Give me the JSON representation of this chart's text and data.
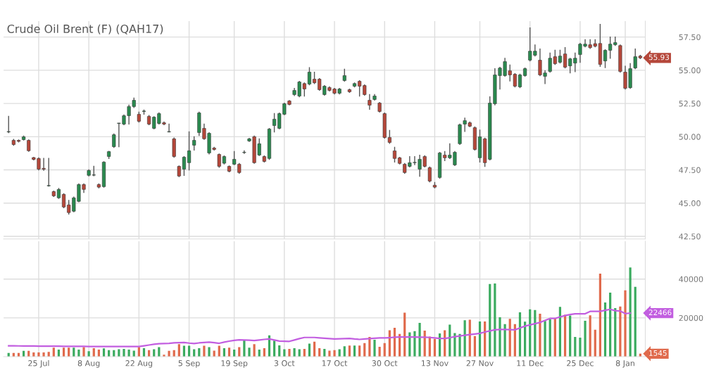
{
  "chart_data": [
    {
      "type": "candlestick",
      "title": "Crude Oil Brent (F) (QAH17)",
      "categories": [
        null,
        null,
        null,
        null,
        null,
        null,
        null,
        null,
        null,
        null,
        null,
        null,
        null,
        null,
        null,
        null,
        null,
        null,
        null,
        null,
        null,
        null,
        null,
        null,
        null,
        null,
        null,
        null,
        null,
        null,
        null,
        null,
        null,
        null,
        null,
        null,
        null,
        null,
        null,
        null,
        null,
        null,
        null,
        null,
        null,
        null,
        null,
        null,
        null,
        null,
        null,
        null,
        null,
        null,
        null,
        null,
        null,
        null,
        null,
        null,
        null,
        null,
        null,
        null,
        null,
        null,
        null,
        null,
        null,
        null,
        null,
        null,
        null,
        null,
        null,
        null,
        null,
        null,
        null,
        null,
        null,
        null,
        null,
        null,
        null,
        null,
        null,
        null,
        null,
        null,
        null,
        null,
        null,
        null,
        null,
        null,
        null,
        null,
        null,
        null,
        null,
        null,
        null,
        null,
        null,
        null,
        null,
        null,
        null,
        null,
        null,
        null,
        null,
        null,
        null,
        null,
        null,
        null,
        null,
        null,
        null,
        null,
        null,
        null,
        null,
        null,
        null
      ],
      "ohlc": [
        [
          50.36,
          51.53,
          50.3,
          50.36
        ],
        [
          49.73,
          49.8,
          49.35,
          49.41
        ],
        [
          49.72,
          49.75,
          49.6,
          49.65
        ],
        [
          49.78,
          50.05,
          49.75,
          49.99
        ],
        [
          49.73,
          49.75,
          48.9,
          48.94
        ],
        [
          48.43,
          48.45,
          48.25,
          48.29
        ],
        [
          48.36,
          48.4,
          47.5,
          47.56
        ],
        [
          47.62,
          48.36,
          47.47,
          47.55
        ],
        [
          46.3,
          48.36,
          46.28,
          46.3
        ],
        [
          45.87,
          45.9,
          45.5,
          45.55
        ],
        [
          45.4,
          46.1,
          45.35,
          46.03
        ],
        [
          45.66,
          45.7,
          44.65,
          44.71
        ],
        [
          44.87,
          45.2,
          44.18,
          44.29
        ],
        [
          44.39,
          45.45,
          44.35,
          45.4
        ],
        [
          45.13,
          46.45,
          45.1,
          46.4
        ],
        [
          46.4,
          46.45,
          45.8,
          46.03
        ],
        [
          47.09,
          47.5,
          47.05,
          47.46
        ],
        [
          47.1,
          47.77,
          47.06,
          47.1
        ],
        [
          46.4,
          46.45,
          46.15,
          46.2
        ],
        [
          46.24,
          48.12,
          46.2,
          48.09
        ],
        [
          48.51,
          48.9,
          48.36,
          48.88
        ],
        [
          49.25,
          50.2,
          49.2,
          50.15
        ],
        [
          51.0,
          51.0,
          49.25,
          51.0
        ],
        [
          50.95,
          51.63,
          50.9,
          51.58
        ],
        [
          51.58,
          52.37,
          50.95,
          52.27
        ],
        [
          52.27,
          52.9,
          52.2,
          52.74
        ],
        [
          51.69,
          51.85,
          51.1,
          51.16
        ],
        [
          51.9,
          52.0,
          51.7,
          51.9
        ],
        [
          51.53,
          51.6,
          50.9,
          50.95
        ],
        [
          50.63,
          51.5,
          50.6,
          51.47
        ],
        [
          51.0,
          51.8,
          50.95,
          51.74
        ],
        [
          51.05,
          51.1,
          50.9,
          50.95
        ],
        [
          50.36,
          50.95,
          50.36,
          50.36
        ],
        [
          49.84,
          49.9,
          48.45,
          48.51
        ],
        [
          47.77,
          47.8,
          47.0,
          47.04
        ],
        [
          47.56,
          48.5,
          47.09,
          48.46
        ],
        [
          48.04,
          50.36,
          47.5,
          48.94
        ],
        [
          49.36,
          49.99,
          48.99,
          49.73
        ],
        [
          50.31,
          51.85,
          50.1,
          51.79
        ],
        [
          50.63,
          50.95,
          49.8,
          49.84
        ],
        [
          48.78,
          50.3,
          48.7,
          50.26
        ],
        [
          49.15,
          49.2,
          49.0,
          49.04
        ],
        [
          48.67,
          48.7,
          47.7,
          47.77
        ],
        [
          48.0,
          48.55,
          47.95,
          48.51
        ],
        [
          47.77,
          47.8,
          47.35,
          47.4
        ],
        [
          47.93,
          48.88,
          47.9,
          48.3
        ],
        [
          47.93,
          47.98,
          47.25,
          47.3
        ],
        [
          48.8,
          48.93,
          48.75,
          48.8
        ],
        [
          49.68,
          49.88,
          49.65,
          49.84
        ],
        [
          50.0,
          50.05,
          48.0,
          48.04
        ],
        [
          48.62,
          49.84,
          48.58,
          49.47
        ],
        [
          48.51,
          48.55,
          48.1,
          48.14
        ],
        [
          48.36,
          50.62,
          48.3,
          50.58
        ],
        [
          50.84,
          51.74,
          50.36,
          51.32
        ],
        [
          50.63,
          51.78,
          50.6,
          51.74
        ],
        [
          51.69,
          52.52,
          51.65,
          52.48
        ],
        [
          52.69,
          52.72,
          52.4,
          52.43
        ],
        [
          53.17,
          53.64,
          53.1,
          53.48
        ],
        [
          53.06,
          54.16,
          53.0,
          54.12
        ],
        [
          54.0,
          54.05,
          53.06,
          53.59
        ],
        [
          53.96,
          55.2,
          53.9,
          54.86
        ],
        [
          54.33,
          54.85,
          54.0,
          54.06
        ],
        [
          54.33,
          54.38,
          53.5,
          53.54
        ],
        [
          53.17,
          53.85,
          53.12,
          53.8
        ],
        [
          53.7,
          53.75,
          53.44,
          53.48
        ],
        [
          53.59,
          53.63,
          53.22,
          53.27
        ],
        [
          53.27,
          53.63,
          53.22,
          53.59
        ],
        [
          54.22,
          55.07,
          54.18,
          54.6
        ],
        [
          53.54,
          53.58,
          53.34,
          53.38
        ],
        [
          53.8,
          54.05,
          53.75,
          54.0
        ],
        [
          54.17,
          54.22,
          53.06,
          53.8
        ],
        [
          53.85,
          53.9,
          53.12,
          53.17
        ],
        [
          52.74,
          53.17,
          52.06,
          52.37
        ],
        [
          52.8,
          53.17,
          52.75,
          53.06
        ],
        [
          52.53,
          52.58,
          51.85,
          51.9
        ],
        [
          51.74,
          51.78,
          49.9,
          49.94
        ],
        [
          49.94,
          50.47,
          49.5,
          49.57
        ],
        [
          48.93,
          49.2,
          48.1,
          48.36
        ],
        [
          48.41,
          48.45,
          47.95,
          47.99
        ],
        [
          47.93,
          47.98,
          47.25,
          47.3
        ],
        [
          47.77,
          48.5,
          47.72,
          48.04
        ],
        [
          48.04,
          48.5,
          47.9,
          48.04
        ],
        [
          47.56,
          48.6,
          47.03,
          48.3
        ],
        [
          48.51,
          48.56,
          47.72,
          47.77
        ],
        [
          47.67,
          47.72,
          46.6,
          46.66
        ],
        [
          46.35,
          46.56,
          46.15,
          46.2
        ],
        [
          46.93,
          48.82,
          46.88,
          48.78
        ],
        [
          48.62,
          48.88,
          48.2,
          48.41
        ],
        [
          48.41,
          49.47,
          48.36,
          48.62
        ],
        [
          47.88,
          48.88,
          47.83,
          48.83
        ],
        [
          49.47,
          50.95,
          49.42,
          50.9
        ],
        [
          50.95,
          51.4,
          50.4,
          51.21
        ],
        [
          51.05,
          51.1,
          50.75,
          50.79
        ],
        [
          50.68,
          50.73,
          49.0,
          49.04
        ],
        [
          48.41,
          50.5,
          48.1,
          49.99
        ],
        [
          49.84,
          49.89,
          47.77,
          48.04
        ],
        [
          48.3,
          53.0,
          48.25,
          52.53
        ],
        [
          52.48,
          55.12,
          52.4,
          54.65
        ],
        [
          54.6,
          55.22,
          53.59,
          55.17
        ],
        [
          54.6,
          55.9,
          54.55,
          55.65
        ],
        [
          54.96,
          55.4,
          54.2,
          54.65
        ],
        [
          54.7,
          54.75,
          53.75,
          53.8
        ],
        [
          53.75,
          54.7,
          53.7,
          54.65
        ],
        [
          54.6,
          55.17,
          54.55,
          55.12
        ],
        [
          55.76,
          58.19,
          55.7,
          56.44
        ],
        [
          56.13,
          56.9,
          56.08,
          56.44
        ],
        [
          55.76,
          56.6,
          54.6,
          54.65
        ],
        [
          54.54,
          54.96,
          54.0,
          54.8
        ],
        [
          54.91,
          56.3,
          54.86,
          55.91
        ],
        [
          56.02,
          56.5,
          55.44,
          55.49
        ],
        [
          55.6,
          56.5,
          55.55,
          56.07
        ],
        [
          56.23,
          56.7,
          55.18,
          55.23
        ],
        [
          55.33,
          55.9,
          54.8,
          55.86
        ],
        [
          55.54,
          56.3,
          54.9,
          55.91
        ],
        [
          56.18,
          57.02,
          55.6,
          56.97
        ],
        [
          56.81,
          57.3,
          56.76,
          56.97
        ],
        [
          56.92,
          57.3,
          56.65,
          56.7
        ],
        [
          57.0,
          57.3,
          56.76,
          56.81
        ],
        [
          57.02,
          58.45,
          55.3,
          55.44
        ],
        [
          55.7,
          56.55,
          55.2,
          56.5
        ],
        [
          56.5,
          57.5,
          55.9,
          56.97
        ],
        [
          56.92,
          57.5,
          56.87,
          57.08
        ],
        [
          56.86,
          56.9,
          54.86,
          54.91
        ],
        [
          54.86,
          55.3,
          53.59,
          53.64
        ],
        [
          53.69,
          55.5,
          53.64,
          55.12
        ],
        [
          55.17,
          56.6,
          55.12,
          56.02
        ],
        [
          56.07,
          56.12,
          55.88,
          55.93
        ]
      ],
      "ylim": [
        42.3,
        58.7
      ],
      "yticks": [
        {
          "value": 42.5,
          "label": "42.50"
        },
        {
          "value": 45,
          "label": "45.00"
        },
        {
          "value": 47.5,
          "label": "47.50"
        },
        {
          "value": 50,
          "label": "50.00"
        },
        {
          "value": 52.5,
          "label": "52.50"
        },
        {
          "value": 55,
          "label": "55.00"
        },
        {
          "value": 57.5,
          "label": "57.50"
        }
      ],
      "annotations": [
        "55.93"
      ],
      "grid": true,
      "tick_labels": "y"
    },
    {
      "type": "bar",
      "categories": [
        null,
        null,
        null,
        null,
        null,
        null,
        "25 Jul",
        null,
        null,
        null,
        null,
        null,
        null,
        null,
        null,
        null,
        "8 Aug",
        null,
        null,
        null,
        null,
        null,
        null,
        null,
        null,
        null,
        "22 Aug",
        null,
        null,
        null,
        null,
        null,
        null,
        null,
        null,
        null,
        "5 Sep",
        null,
        null,
        null,
        null,
        null,
        null,
        null,
        null,
        "19 Sep",
        null,
        null,
        null,
        null,
        null,
        null,
        null,
        null,
        null,
        "3 Oct",
        null,
        null,
        null,
        null,
        null,
        null,
        null,
        null,
        null,
        "17 Oct",
        null,
        null,
        null,
        null,
        null,
        null,
        null,
        null,
        null,
        "30 Oct",
        null,
        null,
        null,
        null,
        null,
        null,
        null,
        null,
        null,
        "13 Nov",
        null,
        null,
        null,
        null,
        null,
        null,
        null,
        null,
        "27 Nov",
        null,
        null,
        null,
        null,
        null,
        null,
        null,
        null,
        null,
        "11 Dec",
        null,
        null,
        null,
        null,
        null,
        null,
        null,
        null,
        null,
        "25 Dec",
        null,
        null,
        null,
        null,
        null,
        null,
        null,
        null,
        "8 Jan",
        null,
        null,
        null
      ],
      "series": [
        {
          "type": "line",
          "color": "#c25ee0",
          "values": [
            5600,
            5600,
            5550,
            5500,
            5500,
            5500,
            5450,
            5450,
            5400,
            5400,
            5400,
            5350,
            5350,
            5300,
            5300,
            5300,
            5250,
            5250,
            5250,
            5250,
            5250,
            5250,
            5250,
            5250,
            5250,
            5250,
            5250,
            5600,
            6000,
            6400,
            6700,
            6800,
            6900,
            7100,
            7200,
            7300,
            7000,
            6800,
            7100,
            7300,
            7500,
            7200,
            6900,
            7500,
            8000,
            8400,
            8650,
            8600,
            8500,
            8300,
            8600,
            8900,
            9150,
            8600,
            8050,
            7950,
            7900,
            8600,
            9300,
            9900,
            9900,
            9900,
            9700,
            9500,
            9300,
            9150,
            9200,
            9300,
            9400,
            9100,
            8900,
            9100,
            9300,
            9500,
            9650,
            9650,
            9800,
            10000,
            10150,
            10150,
            10100,
            10100,
            10050,
            10050,
            9900,
            9700,
            9400,
            9400,
            9800,
            10300,
            10700,
            11050,
            11400,
            11700,
            12050,
            12700,
            13300,
            13850,
            14000,
            14000,
            13900,
            13850,
            14800,
            15750,
            16400,
            17000,
            17650,
            18700,
            19700,
            19700,
            20500,
            21200,
            21700,
            22100,
            22100,
            22100,
            23350,
            23350,
            23350,
            23900,
            24400,
            23750,
            23500,
            22200,
            22466,
            null,
            null
          ]
        },
        {
          "type": "bar",
          "values": [
            1950,
            1950,
            1950,
            3050,
            3050,
            2200,
            2200,
            2200,
            2450,
            4650,
            3650,
            4650,
            4650,
            4650,
            3650,
            4900,
            2800,
            4400,
            3650,
            4250,
            3400,
            3400,
            3800,
            4050,
            3650,
            3150,
            4900,
            4400,
            3400,
            3800,
            4900,
            1000,
            3050,
            3400,
            6450,
            5600,
            5600,
            3800,
            4400,
            5600,
            4900,
            3150,
            5600,
            4400,
            4650,
            3650,
            4900,
            8550,
            4650,
            6450,
            3650,
            4400,
            11000,
            8300,
            5850,
            3800,
            4050,
            4400,
            3800,
            4050,
            6700,
            7700,
            4400,
            4050,
            3150,
            3400,
            3800,
            5350,
            5700,
            5700,
            5700,
            7000,
            10150,
            8750,
            5100,
            7000,
            13600,
            14850,
            11700,
            22700,
            12550,
            13200,
            17400,
            13450,
            10400,
            9150,
            11950,
            13600,
            16500,
            12200,
            11700,
            18800,
            19050,
            10650,
            18150,
            18150,
            37450,
            37700,
            20300,
            16750,
            19550,
            16750,
            22850,
            18050,
            24400,
            24000,
            22100,
            18400,
            19300,
            19700,
            25650,
            21600,
            21200,
            10150,
            9800,
            18550,
            21350,
            13850,
            42800,
            27950,
            33000,
            25000,
            25900,
            34150,
            46000,
            36050,
            1545
          ],
          "colors": [
            "#3bab5f",
            "#e06a4c",
            "#e06a4c",
            "#3bab5f",
            "#e06a4c",
            "#e06a4c",
            "#e06a4c",
            "#e06a4c",
            "#e06a4c",
            "#e06a4c",
            "#3bab5f",
            "#e06a4c",
            "#e06a4c",
            "#3bab5f",
            "#3bab5f",
            "#e06a4c",
            "#3bab5f",
            "#e06a4c",
            "#e06a4c",
            "#3bab5f",
            "#3bab5f",
            "#3bab5f",
            "#3bab5f",
            "#3bab5f",
            "#3bab5f",
            "#3bab5f",
            "#e06a4c",
            "#3bab5f",
            "#e06a4c",
            "#3bab5f",
            "#3bab5f",
            "#e06a4c",
            "#e06a4c",
            "#e06a4c",
            "#e06a4c",
            "#3bab5f",
            "#3bab5f",
            "#3bab5f",
            "#3bab5f",
            "#e06a4c",
            "#3bab5f",
            "#e06a4c",
            "#e06a4c",
            "#3bab5f",
            "#e06a4c",
            "#3bab5f",
            "#e06a4c",
            "#3bab5f",
            "#3bab5f",
            "#e06a4c",
            "#3bab5f",
            "#e06a4c",
            "#3bab5f",
            "#3bab5f",
            "#3bab5f",
            "#3bab5f",
            "#e06a4c",
            "#3bab5f",
            "#3bab5f",
            "#e06a4c",
            "#3bab5f",
            "#e06a4c",
            "#e06a4c",
            "#3bab5f",
            "#e06a4c",
            "#e06a4c",
            "#3bab5f",
            "#3bab5f",
            "#e06a4c",
            "#3bab5f",
            "#e06a4c",
            "#e06a4c",
            "#e06a4c",
            "#3bab5f",
            "#e06a4c",
            "#e06a4c",
            "#e06a4c",
            "#e06a4c",
            "#e06a4c",
            "#e06a4c",
            "#3bab5f",
            "#3bab5f",
            "#3bab5f",
            "#e06a4c",
            "#e06a4c",
            "#e06a4c",
            "#3bab5f",
            "#e06a4c",
            "#3bab5f",
            "#3bab5f",
            "#3bab5f",
            "#3bab5f",
            "#e06a4c",
            "#e06a4c",
            "#3bab5f",
            "#e06a4c",
            "#3bab5f",
            "#3bab5f",
            "#3bab5f",
            "#3bab5f",
            "#e06a4c",
            "#e06a4c",
            "#3bab5f",
            "#3bab5f",
            "#3bab5f",
            "#3bab5f",
            "#e06a4c",
            "#3bab5f",
            "#3bab5f",
            "#e06a4c",
            "#3bab5f",
            "#e06a4c",
            "#3bab5f",
            "#3bab5f",
            "#3bab5f",
            "#3bab5f",
            "#e06a4c",
            "#e06a4c",
            "#e06a4c",
            "#3bab5f",
            "#3bab5f",
            "#3bab5f",
            "#e06a4c",
            "#e06a4c",
            "#3bab5f",
            "#3bab5f",
            "#e06a4c"
          ]
        }
      ],
      "ylim": [
        0,
        59500
      ],
      "yticks": [
        20000,
        40000
      ],
      "annotations": [
        "22466",
        "1545"
      ],
      "grid": true
    }
  ]
}
